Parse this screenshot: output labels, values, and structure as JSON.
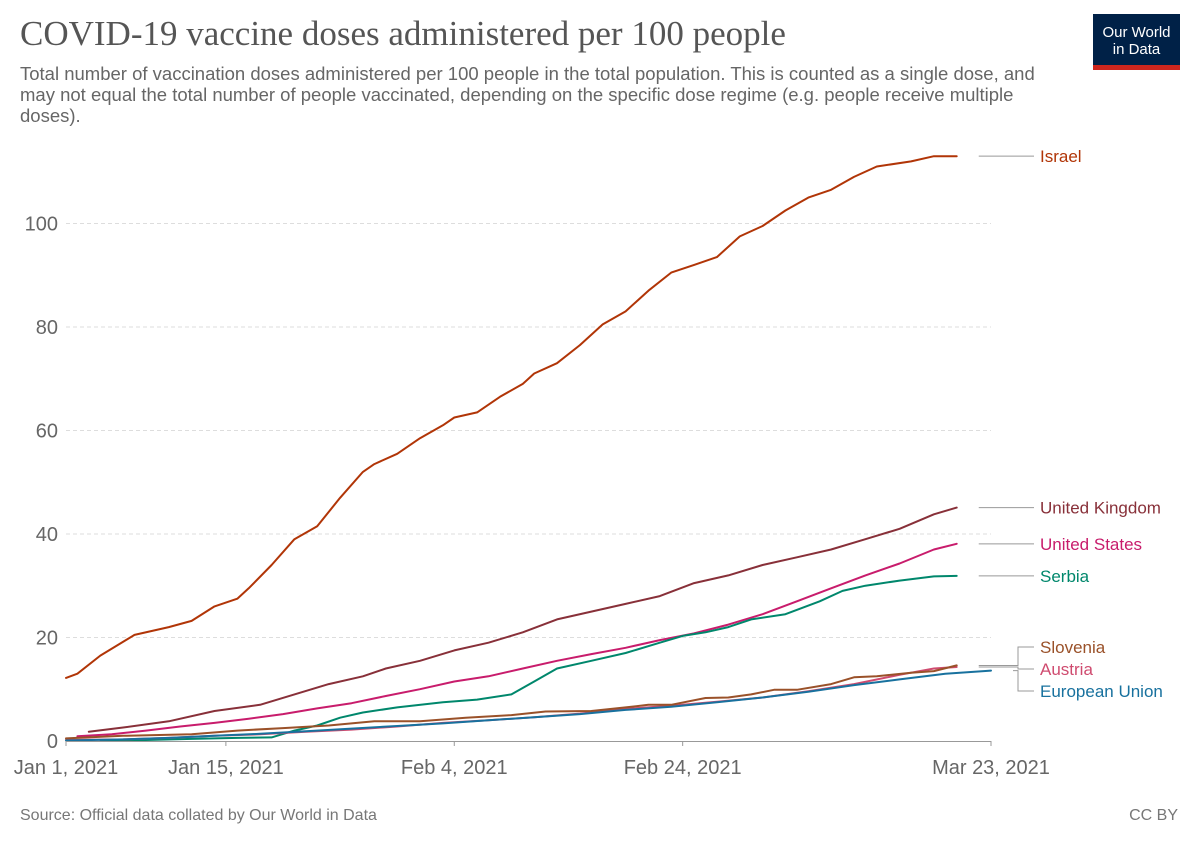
{
  "title": "COVID-19 vaccine doses administered per 100 people",
  "subtitle": "Total number of vaccination doses administered per 100 people in the total population. This is counted as a single dose, and may not equal the total number of people vaccinated, depending on the specific dose regime (e.g. people receive multiple doses).",
  "logo": {
    "line1": "Our World",
    "line2": "in Data",
    "bg_color": "#002147",
    "accent_color": "#ce261e"
  },
  "source": "Source: Official data collated by Our World in Data",
  "license": "CC BY",
  "chart_data": {
    "type": "line",
    "title": "COVID-19 vaccine doses administered per 100 people",
    "xlabel": "",
    "ylabel": "",
    "x_domain": [
      "2021-01-01",
      "2021-03-23"
    ],
    "ylim": [
      0,
      114
    ],
    "yticks": [
      0,
      20,
      40,
      60,
      80,
      100
    ],
    "xticks": [
      {
        "date": "2021-01-01",
        "label": "Jan 1, 2021"
      },
      {
        "date": "2021-01-15",
        "label": "Jan 15, 2021"
      },
      {
        "date": "2021-02-04",
        "label": "Feb 4, 2021"
      },
      {
        "date": "2021-02-24",
        "label": "Feb 24, 2021"
      },
      {
        "date": "2021-03-23",
        "label": "Mar 23, 2021"
      }
    ],
    "grid": "horizontal dashed",
    "legend": "right, labels at line ends",
    "series": [
      {
        "name": "Israel",
        "color": "#b13507",
        "points": [
          [
            "2021-01-01",
            12.2
          ],
          [
            "2021-01-02",
            13.0
          ],
          [
            "2021-01-04",
            16.5
          ],
          [
            "2021-01-07",
            20.5
          ],
          [
            "2021-01-10",
            22.0
          ],
          [
            "2021-01-12",
            23.2
          ],
          [
            "2021-01-14",
            26.0
          ],
          [
            "2021-01-16",
            27.5
          ],
          [
            "2021-01-17",
            29.5
          ],
          [
            "2021-01-19",
            34.0
          ],
          [
            "2021-01-21",
            39.0
          ],
          [
            "2021-01-23",
            41.5
          ],
          [
            "2021-01-25",
            47.0
          ],
          [
            "2021-01-27",
            52.0
          ],
          [
            "2021-01-28",
            53.5
          ],
          [
            "2021-01-30",
            55.5
          ],
          [
            "2021-02-01",
            58.5
          ],
          [
            "2021-02-03",
            61.0
          ],
          [
            "2021-02-04",
            62.5
          ],
          [
            "2021-02-06",
            63.5
          ],
          [
            "2021-02-08",
            66.5
          ],
          [
            "2021-02-10",
            69.0
          ],
          [
            "2021-02-11",
            71.0
          ],
          [
            "2021-02-13",
            73.0
          ],
          [
            "2021-02-15",
            76.5
          ],
          [
            "2021-02-17",
            80.5
          ],
          [
            "2021-02-19",
            83.0
          ],
          [
            "2021-02-21",
            87.0
          ],
          [
            "2021-02-23",
            90.5
          ],
          [
            "2021-02-25",
            92.0
          ],
          [
            "2021-02-27",
            93.5
          ],
          [
            "2021-03-01",
            97.5
          ],
          [
            "2021-03-03",
            99.5
          ],
          [
            "2021-03-05",
            102.5
          ],
          [
            "2021-03-07",
            105.0
          ],
          [
            "2021-03-09",
            106.5
          ],
          [
            "2021-03-11",
            109.0
          ],
          [
            "2021-03-13",
            111.0
          ],
          [
            "2021-03-16",
            112.0
          ],
          [
            "2021-03-18",
            113.0
          ],
          [
            "2021-03-20",
            113.0
          ]
        ]
      },
      {
        "name": "United Kingdom",
        "color": "#883039",
        "points": [
          [
            "2021-01-03",
            1.8
          ],
          [
            "2021-01-06",
            2.6
          ],
          [
            "2021-01-10",
            3.8
          ],
          [
            "2021-01-14",
            5.8
          ],
          [
            "2021-01-18",
            7.0
          ],
          [
            "2021-01-21",
            9.0
          ],
          [
            "2021-01-24",
            11.0
          ],
          [
            "2021-01-27",
            12.5
          ],
          [
            "2021-01-29",
            14.0
          ],
          [
            "2021-02-01",
            15.5
          ],
          [
            "2021-02-04",
            17.5
          ],
          [
            "2021-02-07",
            19.0
          ],
          [
            "2021-02-10",
            21.0
          ],
          [
            "2021-02-13",
            23.5
          ],
          [
            "2021-02-16",
            25.0
          ],
          [
            "2021-02-19",
            26.5
          ],
          [
            "2021-02-22",
            28.0
          ],
          [
            "2021-02-25",
            30.5
          ],
          [
            "2021-02-28",
            32.0
          ],
          [
            "2021-03-03",
            34.0
          ],
          [
            "2021-03-06",
            35.5
          ],
          [
            "2021-03-09",
            37.0
          ],
          [
            "2021-03-12",
            39.0
          ],
          [
            "2021-03-15",
            41.0
          ],
          [
            "2021-03-18",
            43.8
          ],
          [
            "2021-03-20",
            45.1
          ]
        ]
      },
      {
        "name": "United States",
        "color": "#c81c6c",
        "points": [
          [
            "2021-01-02",
            0.9
          ],
          [
            "2021-01-05",
            1.3
          ],
          [
            "2021-01-08",
            2.0
          ],
          [
            "2021-01-11",
            2.8
          ],
          [
            "2021-01-14",
            3.5
          ],
          [
            "2021-01-17",
            4.3
          ],
          [
            "2021-01-20",
            5.2
          ],
          [
            "2021-01-23",
            6.3
          ],
          [
            "2021-01-26",
            7.3
          ],
          [
            "2021-01-29",
            8.7
          ],
          [
            "2021-02-01",
            10.0
          ],
          [
            "2021-02-04",
            11.5
          ],
          [
            "2021-02-07",
            12.5
          ],
          [
            "2021-02-10",
            14.0
          ],
          [
            "2021-02-13",
            15.5
          ],
          [
            "2021-02-16",
            16.8
          ],
          [
            "2021-02-19",
            18.0
          ],
          [
            "2021-02-22",
            19.5
          ],
          [
            "2021-02-25",
            20.8
          ],
          [
            "2021-02-28",
            22.5
          ],
          [
            "2021-03-03",
            24.5
          ],
          [
            "2021-03-06",
            27.0
          ],
          [
            "2021-03-09",
            29.5
          ],
          [
            "2021-03-12",
            32.0
          ],
          [
            "2021-03-15",
            34.3
          ],
          [
            "2021-03-18",
            37.0
          ],
          [
            "2021-03-20",
            38.1
          ]
        ]
      },
      {
        "name": "Serbia",
        "color": "#00876c",
        "points": [
          [
            "2021-01-04",
            0.2
          ],
          [
            "2021-01-08",
            0.2
          ],
          [
            "2021-01-12",
            0.4
          ],
          [
            "2021-01-16",
            0.6
          ],
          [
            "2021-01-19",
            0.7
          ],
          [
            "2021-01-21",
            2.0
          ],
          [
            "2021-01-23",
            3.0
          ],
          [
            "2021-01-25",
            4.5
          ],
          [
            "2021-01-27",
            5.5
          ],
          [
            "2021-01-30",
            6.5
          ],
          [
            "2021-02-03",
            7.5
          ],
          [
            "2021-02-06",
            8.0
          ],
          [
            "2021-02-09",
            9.0
          ],
          [
            "2021-02-11",
            11.5
          ],
          [
            "2021-02-13",
            14.0
          ],
          [
            "2021-02-16",
            15.5
          ],
          [
            "2021-02-19",
            17.0
          ],
          [
            "2021-02-22",
            19.0
          ],
          [
            "2021-02-24",
            20.3
          ],
          [
            "2021-02-26",
            21.0
          ],
          [
            "2021-02-28",
            22.0
          ],
          [
            "2021-03-02",
            23.5
          ],
          [
            "2021-03-05",
            24.5
          ],
          [
            "2021-03-08",
            27.0
          ],
          [
            "2021-03-10",
            29.0
          ],
          [
            "2021-03-12",
            30.0
          ],
          [
            "2021-03-15",
            31.0
          ],
          [
            "2021-03-18",
            31.8
          ],
          [
            "2021-03-20",
            31.9
          ]
        ]
      },
      {
        "name": "Austria",
        "color": "#cf4b6f",
        "points": [
          [
            "2021-01-01",
            0.2
          ],
          [
            "2021-01-06",
            0.3
          ],
          [
            "2021-01-10",
            0.6
          ],
          [
            "2021-01-14",
            1.0
          ],
          [
            "2021-01-18",
            1.3
          ],
          [
            "2021-01-22",
            1.8
          ],
          [
            "2021-01-26",
            2.2
          ],
          [
            "2021-01-30",
            2.8
          ],
          [
            "2021-02-03",
            3.5
          ],
          [
            "2021-02-07",
            4.0
          ],
          [
            "2021-02-11",
            4.6
          ],
          [
            "2021-02-15",
            5.3
          ],
          [
            "2021-02-19",
            6.2
          ],
          [
            "2021-02-23",
            6.8
          ],
          [
            "2021-02-27",
            7.6
          ],
          [
            "2021-03-03",
            8.4
          ],
          [
            "2021-03-07",
            9.6
          ],
          [
            "2021-03-11",
            11.0
          ],
          [
            "2021-03-15",
            12.8
          ],
          [
            "2021-03-18",
            14.0
          ],
          [
            "2021-03-20",
            14.3
          ]
        ]
      },
      {
        "name": "Slovenia",
        "color": "#9a5129",
        "points": [
          [
            "2021-01-01",
            0.5
          ],
          [
            "2021-01-06",
            1.0
          ],
          [
            "2021-01-12",
            1.3
          ],
          [
            "2021-01-16",
            2.0
          ],
          [
            "2021-01-20",
            2.5
          ],
          [
            "2021-01-24",
            3.0
          ],
          [
            "2021-01-28",
            3.8
          ],
          [
            "2021-02-01",
            3.8
          ],
          [
            "2021-02-05",
            4.5
          ],
          [
            "2021-02-09",
            5.0
          ],
          [
            "2021-02-12",
            5.7
          ],
          [
            "2021-02-16",
            5.8
          ],
          [
            "2021-02-19",
            6.5
          ],
          [
            "2021-02-21",
            7.0
          ],
          [
            "2021-02-23",
            7.0
          ],
          [
            "2021-02-26",
            8.3
          ],
          [
            "2021-02-28",
            8.4
          ],
          [
            "2021-03-02",
            9.0
          ],
          [
            "2021-03-04",
            9.9
          ],
          [
            "2021-03-06",
            9.9
          ],
          [
            "2021-03-09",
            11.0
          ],
          [
            "2021-03-11",
            12.3
          ],
          [
            "2021-03-13",
            12.5
          ],
          [
            "2021-03-16",
            13.2
          ],
          [
            "2021-03-18",
            13.5
          ],
          [
            "2021-03-20",
            14.6
          ]
        ]
      },
      {
        "name": "European Union",
        "color": "#18719e",
        "points": [
          [
            "2021-01-01",
            0.1
          ],
          [
            "2021-01-06",
            0.3
          ],
          [
            "2021-01-10",
            0.6
          ],
          [
            "2021-01-14",
            1.0
          ],
          [
            "2021-01-18",
            1.4
          ],
          [
            "2021-01-22",
            1.9
          ],
          [
            "2021-01-26",
            2.4
          ],
          [
            "2021-01-30",
            2.9
          ],
          [
            "2021-02-03",
            3.4
          ],
          [
            "2021-02-07",
            4.0
          ],
          [
            "2021-02-11",
            4.6
          ],
          [
            "2021-02-15",
            5.2
          ],
          [
            "2021-02-19",
            6.0
          ],
          [
            "2021-02-23",
            6.6
          ],
          [
            "2021-02-27",
            7.5
          ],
          [
            "2021-03-03",
            8.4
          ],
          [
            "2021-03-07",
            9.5
          ],
          [
            "2021-03-11",
            10.8
          ],
          [
            "2021-03-15",
            11.9
          ],
          [
            "2021-03-19",
            13.0
          ],
          [
            "2021-03-23",
            13.6
          ]
        ]
      }
    ]
  }
}
